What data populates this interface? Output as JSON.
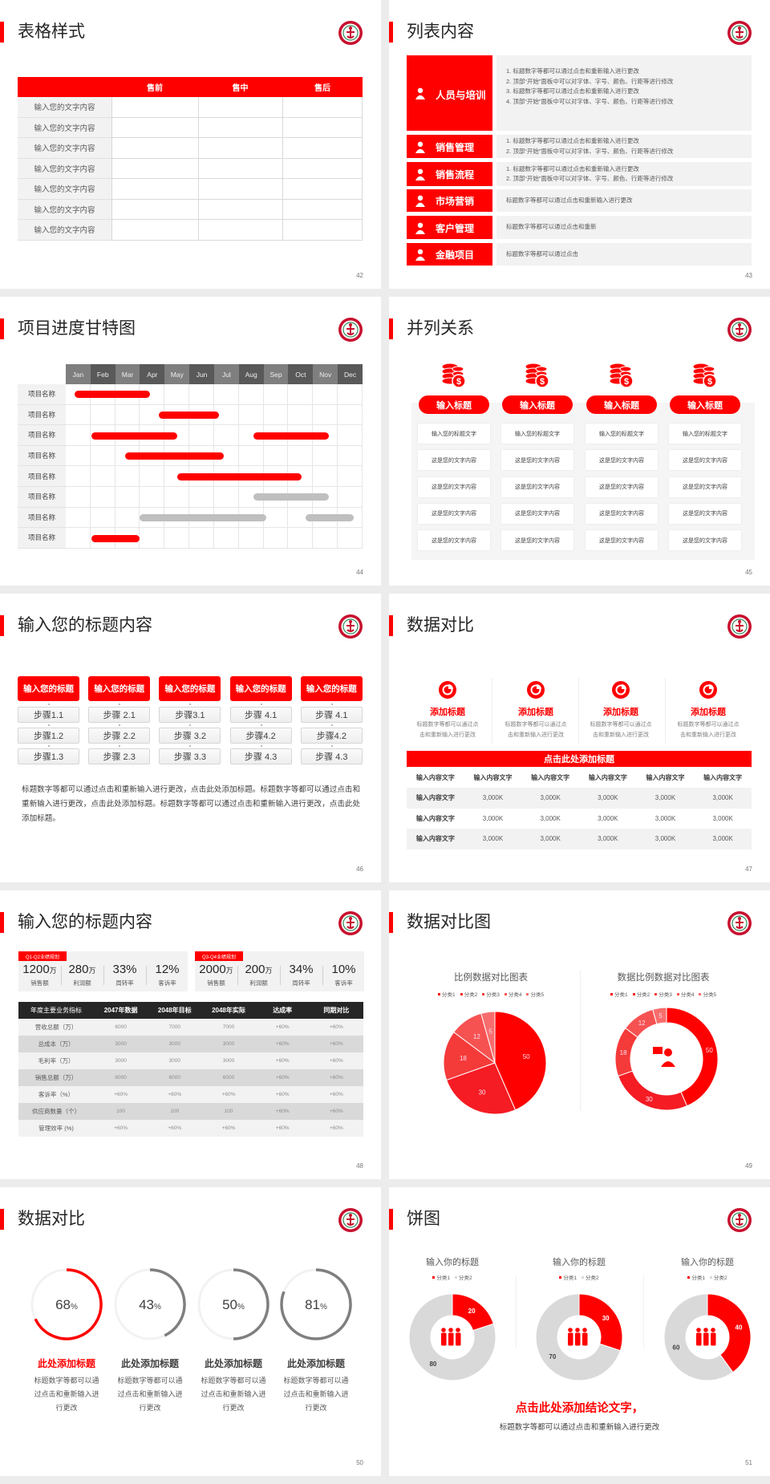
{
  "colors": {
    "accent": "#ff0000",
    "dark": "#262626",
    "gray": "#7f7f7f",
    "light_gray": "#d9d9d9",
    "panel": "#f2f2f2"
  },
  "slides": [
    {
      "page": "42",
      "title": "表格样式",
      "table": {
        "headers": [
          "",
          "售前",
          "售中",
          "售后"
        ],
        "rows": [
          "输入您的文字内容",
          "输入您的文字内容",
          "输入您的文字内容",
          "输入您的文字内容",
          "输入您的文字内容",
          "输入您的文字内容",
          "输入您的文字内容"
        ]
      }
    },
    {
      "page": "43",
      "title": "列表内容",
      "items": [
        {
          "icon": "people-training-icon",
          "label": "人员与培训",
          "lines": [
            "1.  标题数字等都可以通过点击和重新输入进行更改",
            "2.  顶部“开始”面板中可以对字体、字号、颜色、行距等进行修改",
            "3.  标题数字等都可以通过点击和重新输入进行更改",
            "4.  顶部“开始”面板中可以对字体、字号、颜色、行距等进行修改"
          ]
        },
        {
          "icon": "sales-manager-icon",
          "label": "销售管理",
          "lines": [
            "1.  标题数字等都可以通过点击和重新输入进行更改",
            "2.  顶部“开始”面板中可以对字体、字号、颜色、行距等进行修改"
          ]
        },
        {
          "icon": "process-cycle-icon",
          "label": "销售流程",
          "lines": [
            "1.  标题数字等都可以通过点击和重新输入进行更改",
            "2.  顶部“开始”面板中可以对字体、字号、颜色、行距等进行修改"
          ]
        },
        {
          "icon": "bar-chart-icon",
          "label": "市场营销",
          "lines": [
            "标题数字等都可以通过点击和重新输入进行更改"
          ]
        },
        {
          "icon": "customers-icon",
          "label": "客户管理",
          "lines": [
            "标题数字等都可以通过点击和重新"
          ]
        },
        {
          "icon": "finance-hand-icon",
          "label": "金融项目",
          "lines": [
            "标题数字等都可以通过点击"
          ]
        }
      ]
    },
    {
      "page": "44",
      "title": "项目进度甘特图"
    },
    {
      "page": "45",
      "title": "并列关系",
      "columns": [
        {
          "icon": "coins-dollar-icon",
          "heading": "输入标题",
          "rows": [
            "输入您的标题文字",
            "这是您的文字内容",
            "这是您的文字内容",
            "这是您的文字内容",
            "这是您的文字内容"
          ]
        },
        {
          "icon": "coins-dollar-icon",
          "heading": "输入标题",
          "rows": [
            "输入您的标题文字",
            "这是您的文字内容",
            "这是您的文字内容",
            "这是您的文字内容",
            "这是您的文字内容"
          ]
        },
        {
          "icon": "coins-dollar-icon",
          "heading": "输入标题",
          "rows": [
            "输入您的标题文字",
            "这是您的文字内容",
            "这是您的文字内容",
            "这是您的文字内容",
            "这是您的文字内容"
          ]
        },
        {
          "icon": "coins-dollar-icon",
          "heading": "输入标题",
          "rows": [
            "输入您的标题文字",
            "这是您的文字内容",
            "这是您的文字内容",
            "这是您的文字内容",
            "这是您的文字内容"
          ]
        }
      ]
    },
    {
      "page": "46",
      "title": "输入您的标题内容",
      "columns": [
        {
          "heading": "输入您的标题",
          "steps": [
            "步骤1.1",
            "步骤1.2",
            "步骤1.3"
          ]
        },
        {
          "heading": "输入您的标题",
          "steps": [
            "步骤 2.1",
            "步骤 2.2",
            "步骤 2.3"
          ]
        },
        {
          "heading": "输入您的标题",
          "steps": [
            "步骤3.1",
            "步骤 3.2",
            "步骤 3.3"
          ]
        },
        {
          "heading": "输入您的标题",
          "steps": [
            "步骤 4.1",
            "步骤4.2",
            "步骤 4.3"
          ]
        },
        {
          "heading": "输入您的标题",
          "steps": [
            "步骤 4.1",
            "步骤4.2",
            "步骤 4.3"
          ]
        }
      ],
      "paragraph": "标题数字等都可以通过点击和重新输入进行更改，点击此处添加标题。标题数字等都可以通过点击和重新输入进行更改，点击此处添加标题。标题数字等都可以通过点击和重新输入进行更改，点击此处添加标题。"
    },
    {
      "page": "47",
      "title": "数据对比",
      "features": [
        {
          "icon": "pie-chart-icon",
          "title": "添加标题",
          "desc1": "标题数字等都可以通过点",
          "desc2": "击和重新输入进行更改"
        },
        {
          "icon": "pie-chart-icon",
          "title": "添加标题",
          "desc1": "标题数字等都可以通过点",
          "desc2": "击和重新输入进行更改"
        },
        {
          "icon": "pie-chart-icon",
          "title": "添加标题",
          "desc1": "标题数字等都可以通过点",
          "desc2": "击和重新输入进行更改"
        },
        {
          "icon": "pie-chart-icon",
          "title": "添加标题",
          "desc1": "标题数字等都可以通过点",
          "desc2": "击和重新输入进行更改"
        }
      ],
      "banner": "点击此处添加标题",
      "table": {
        "headers": [
          "输入内容文字",
          "输入内容文字",
          "输入内容文字",
          "输入内容文字",
          "输入内容文字",
          "输入内容文字"
        ],
        "rows": [
          [
            "输入内容文字",
            "3,000K",
            "3,000K",
            "3,000K",
            "3,000K",
            "3,000K"
          ],
          [
            "输入内容文字",
            "3,000K",
            "3,000K",
            "3,000K",
            "3,000K",
            "3,000K"
          ],
          [
            "输入内容文字",
            "3,000K",
            "3,000K",
            "3,000K",
            "3,000K",
            "3,000K"
          ]
        ]
      }
    },
    {
      "page": "48",
      "title": "输入您的标题内容",
      "panels": [
        {
          "tag": "Q1-Q2业绩规划",
          "stats": [
            {
              "value": "1200",
              "unit": "万",
              "label": "销售额"
            },
            {
              "value": "280",
              "unit": "万",
              "label": "利润额"
            },
            {
              "value": "33%",
              "unit": "",
              "label": "周转率"
            },
            {
              "value": "12%",
              "unit": "",
              "label": "客诉率"
            }
          ]
        },
        {
          "tag": "Q3-Q4业绩规划",
          "stats": [
            {
              "value": "2000",
              "unit": "万",
              "label": "销售额"
            },
            {
              "value": "200",
              "unit": "万",
              "label": "利润额"
            },
            {
              "value": "34%",
              "unit": "",
              "label": "周转率"
            },
            {
              "value": "10%",
              "unit": "",
              "label": "客诉率"
            }
          ]
        }
      ],
      "table": {
        "headers": [
          "年度主要业务指标",
          "2047年数据",
          "2048年目标",
          "2048年实际",
          "达成率",
          "同期对比"
        ],
        "rows": [
          [
            "营收总额（万）",
            "6000",
            "7000",
            "7000",
            "+60%",
            "+60%"
          ],
          [
            "总成本（万）",
            "3000",
            "3000",
            "3000",
            "+60%",
            "+60%"
          ],
          [
            "毛利率（万）",
            "3000",
            "3000",
            "3000",
            "+60%",
            "+60%"
          ],
          [
            "销售总额（万）",
            "6000",
            "6000",
            "6000",
            "+60%",
            "+60%"
          ],
          [
            "客诉率（%）",
            "+60%",
            "+60%",
            "+60%",
            "+60%",
            "+60%"
          ],
          [
            "供应商数量（个）",
            "100",
            "100",
            "100",
            "+60%",
            "+60%"
          ],
          [
            "管理效率 (%)",
            "+60%",
            "+60%",
            "+60%",
            "+60%",
            "+60%"
          ]
        ]
      }
    },
    {
      "page": "49",
      "title": "数据对比图"
    },
    {
      "page": "50",
      "title": "数据对比",
      "cards": [
        {
          "title": "此处添加标题",
          "desc": [
            "标题数字等都可以通",
            "过点击和重新输入进",
            "行更改"
          ]
        },
        {
          "title": "此处添加标题",
          "desc": [
            "标题数字等都可以通",
            "过点击和重新输入进",
            "行更改"
          ]
        },
        {
          "title": "此处添加标题",
          "desc": [
            "标题数字等都可以通",
            "过点击和重新输入进",
            "行更改"
          ]
        },
        {
          "title": "此处添加标题",
          "desc": [
            "标题数字等都可以通",
            "过点击和重新输入进",
            "行更改"
          ]
        }
      ]
    },
    {
      "page": "51",
      "title": "饼图",
      "conclusion": "点击此处添加结论文字，",
      "subtext": "标题数字等都可以通过点击和重新输入进行更改"
    }
  ],
  "chart_data": [
    {
      "type": "gantt",
      "categories": [
        "Jan",
        "Feb",
        "Mar",
        "Apr",
        "May",
        "Jun",
        "Jul",
        "Aug",
        "Sep",
        "Oct",
        "Nov",
        "Dec"
      ],
      "rows": [
        {
          "label": "项目名称",
          "bars": [
            {
              "start": 0.35,
              "end": 3.4,
              "status": "active"
            }
          ]
        },
        {
          "label": "项目名称",
          "bars": [
            {
              "start": 3.75,
              "end": 6.2,
              "status": "active"
            }
          ]
        },
        {
          "label": "项目名称",
          "bars": [
            {
              "start": 1.05,
              "end": 4.5,
              "status": "active"
            },
            {
              "start": 7.6,
              "end": 10.65,
              "status": "active"
            }
          ]
        },
        {
          "label": "项目名称",
          "bars": [
            {
              "start": 2.4,
              "end": 6.4,
              "status": "active"
            }
          ]
        },
        {
          "label": "项目名称",
          "bars": [
            {
              "start": 4.5,
              "end": 9.55,
              "status": "active"
            }
          ]
        },
        {
          "label": "项目名称",
          "bars": [
            {
              "start": 7.6,
              "end": 10.65,
              "status": "planned"
            }
          ]
        },
        {
          "label": "项目名称",
          "bars": [
            {
              "start": 3.0,
              "end": 8.1,
              "status": "planned"
            },
            {
              "start": 9.7,
              "end": 11.65,
              "status": "planned"
            }
          ]
        },
        {
          "label": "项目名称",
          "bars": [
            {
              "start": 1.05,
              "end": 3.0,
              "status": "active"
            }
          ]
        }
      ]
    },
    {
      "type": "pie",
      "title": "比例数据对比图表",
      "categories": [
        "分类1",
        "分类2",
        "分类3",
        "分类4",
        "分类5"
      ],
      "values": [
        50,
        30,
        18,
        12,
        5
      ],
      "colors": [
        "#ff0000",
        "#f51c24",
        "#f53a3a",
        "#f65252",
        "#f76d6d"
      ],
      "legend": "top"
    },
    {
      "type": "donut",
      "title": "数据比例数据对比图表",
      "categories": [
        "分类1",
        "分类2",
        "分类3",
        "分类4",
        "分类5"
      ],
      "values": [
        50,
        30,
        18,
        12,
        5
      ],
      "colors": [
        "#ff0000",
        "#f51c24",
        "#f53a3a",
        "#f65252",
        "#f76d6d"
      ],
      "legend": "top",
      "center_icon": "customer-service-icon"
    },
    {
      "type": "progress-ring",
      "values": [
        68,
        43,
        50,
        81
      ],
      "unit": "%",
      "colors": [
        "#ff0000",
        "#7f7f7f",
        "#7f7f7f",
        "#7f7f7f"
      ]
    },
    {
      "type": "donut",
      "title": "输入你的标题",
      "categories": [
        "分类1",
        "分类2"
      ],
      "values": [
        20,
        80
      ],
      "colors": [
        "#ff0000",
        "#d9d9d9"
      ],
      "legend": "top",
      "center_icon": "team-icon"
    },
    {
      "type": "donut",
      "title": "输入你的标题",
      "categories": [
        "分类1",
        "分类2"
      ],
      "values": [
        30,
        70
      ],
      "colors": [
        "#ff0000",
        "#d9d9d9"
      ],
      "legend": "top",
      "center_icon": "team-icon"
    },
    {
      "type": "donut",
      "title": "输入你的标题",
      "categories": [
        "分类1",
        "分类2"
      ],
      "values": [
        40,
        60
      ],
      "colors": [
        "#ff0000",
        "#d9d9d9"
      ],
      "legend": "top",
      "center_icon": "team-icon"
    }
  ]
}
